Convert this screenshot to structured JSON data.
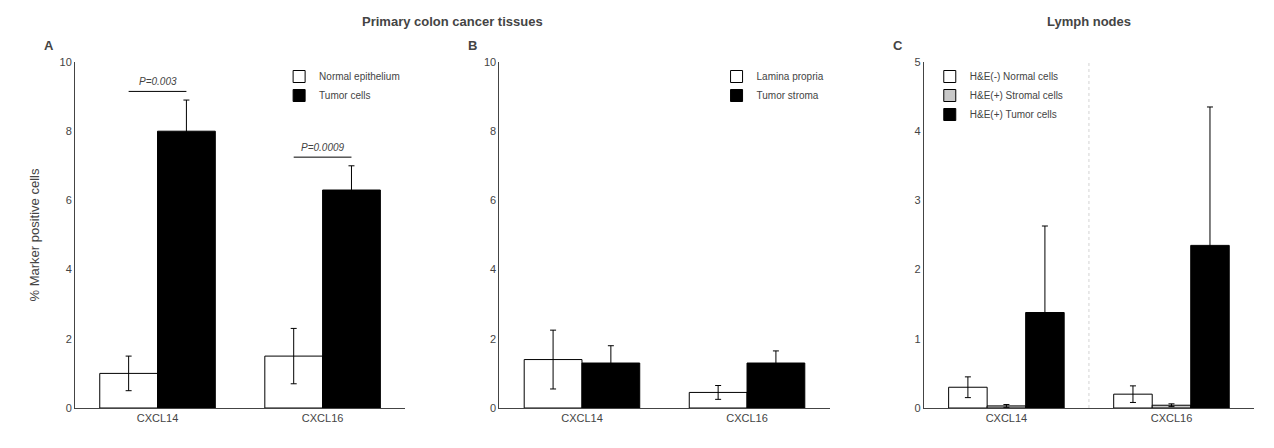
{
  "chart_data": [
    {
      "type": "bar",
      "title": "A",
      "subtitle": "Primary colon cancer tissues",
      "ylabel": "% Marker positive cells",
      "categories": [
        "CXCL14",
        "CXCL16"
      ],
      "series": [
        {
          "name": "Normal epithelium",
          "color": "white",
          "values": [
            1.0,
            1.5
          ],
          "errors": [
            0.5,
            0.8
          ]
        },
        {
          "name": "Tumor cells",
          "color": "black",
          "values": [
            8.0,
            6.3
          ],
          "errors": [
            0.9,
            0.7
          ]
        }
      ],
      "annotations": [
        {
          "text": "P=0.003",
          "category": "CXCL14"
        },
        {
          "text": "P=0.0009",
          "category": "CXCL16"
        }
      ],
      "ylim": [
        0,
        10
      ],
      "yticks": [
        0,
        2,
        4,
        6,
        8,
        10
      ],
      "grid": false,
      "legend": "upper right"
    },
    {
      "type": "bar",
      "title": "B",
      "categories": [
        "CXCL14",
        "CXCL16"
      ],
      "series": [
        {
          "name": "Lamina propria",
          "color": "white",
          "values": [
            1.4,
            0.45
          ],
          "errors": [
            0.85,
            0.2
          ]
        },
        {
          "name": "Tumor stroma",
          "color": "black",
          "values": [
            1.3,
            1.3
          ],
          "errors": [
            0.5,
            0.35
          ]
        }
      ],
      "ylim": [
        0,
        10
      ],
      "yticks": [
        0,
        2,
        4,
        6,
        8,
        10
      ],
      "grid": false,
      "legend": "upper right"
    },
    {
      "type": "bar",
      "title": "C",
      "subtitle": "Lymph nodes",
      "categories": [
        "CXCL14",
        "CXCL16"
      ],
      "series": [
        {
          "name": "H&E(-) Normal cells",
          "color": "white",
          "values": [
            0.3,
            0.2
          ],
          "errors": [
            0.15,
            0.12
          ]
        },
        {
          "name": "H&E(+) Stromal cells",
          "color": "#c8c8c8",
          "values": [
            0.03,
            0.04
          ],
          "errors": [
            0.02,
            0.02
          ]
        },
        {
          "name": "H&E(+) Tumor cells",
          "color": "black",
          "values": [
            1.38,
            2.35
          ],
          "errors": [
            1.25,
            2.0
          ]
        }
      ],
      "ylim": [
        0,
        5
      ],
      "yticks": [
        0,
        1,
        2,
        3,
        4,
        5
      ],
      "grid": false,
      "legend": "upper left"
    }
  ]
}
